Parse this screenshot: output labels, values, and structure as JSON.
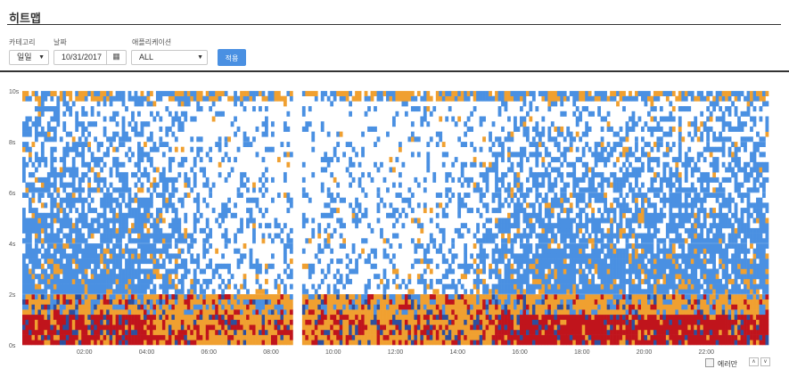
{
  "page": {
    "title": "히트맵"
  },
  "filters": {
    "category": {
      "label": "카테고리",
      "value": "일일"
    },
    "date": {
      "label": "날짜",
      "value": "10/31/2017",
      "icon": "calendar-icon"
    },
    "application": {
      "label": "애플리케이션",
      "value": "ALL"
    },
    "apply_label": "적용"
  },
  "chart_data": {
    "type": "heatmap",
    "title": "",
    "xlabel": "",
    "ylabel": "",
    "x_ticks": [
      "02:00",
      "04:00",
      "06:00",
      "08:00",
      "10:00",
      "12:00",
      "14:00",
      "16:00",
      "18:00",
      "20:00",
      "22:00"
    ],
    "x_tick_hours": [
      2,
      4,
      6,
      8,
      10,
      12,
      14,
      16,
      18,
      20,
      22
    ],
    "xlim_hours": [
      0,
      24
    ],
    "y_ticks": [
      "0s",
      "2s",
      "4s",
      "6s",
      "8s",
      "10s"
    ],
    "y_tick_values": [
      0,
      2,
      4,
      6,
      8,
      10
    ],
    "ylim_seconds": [
      0,
      10
    ],
    "gap_hour": 8.8,
    "grid": true,
    "colors": {
      "low": "#4a90e2",
      "mid": "#f0a030",
      "high": "#c0141c",
      "dark": "#2d4f9e",
      "empty": "#ffffff"
    }
  },
  "legend": {
    "label": "에러만"
  },
  "nav": {
    "up": "∧",
    "down": "∨"
  }
}
